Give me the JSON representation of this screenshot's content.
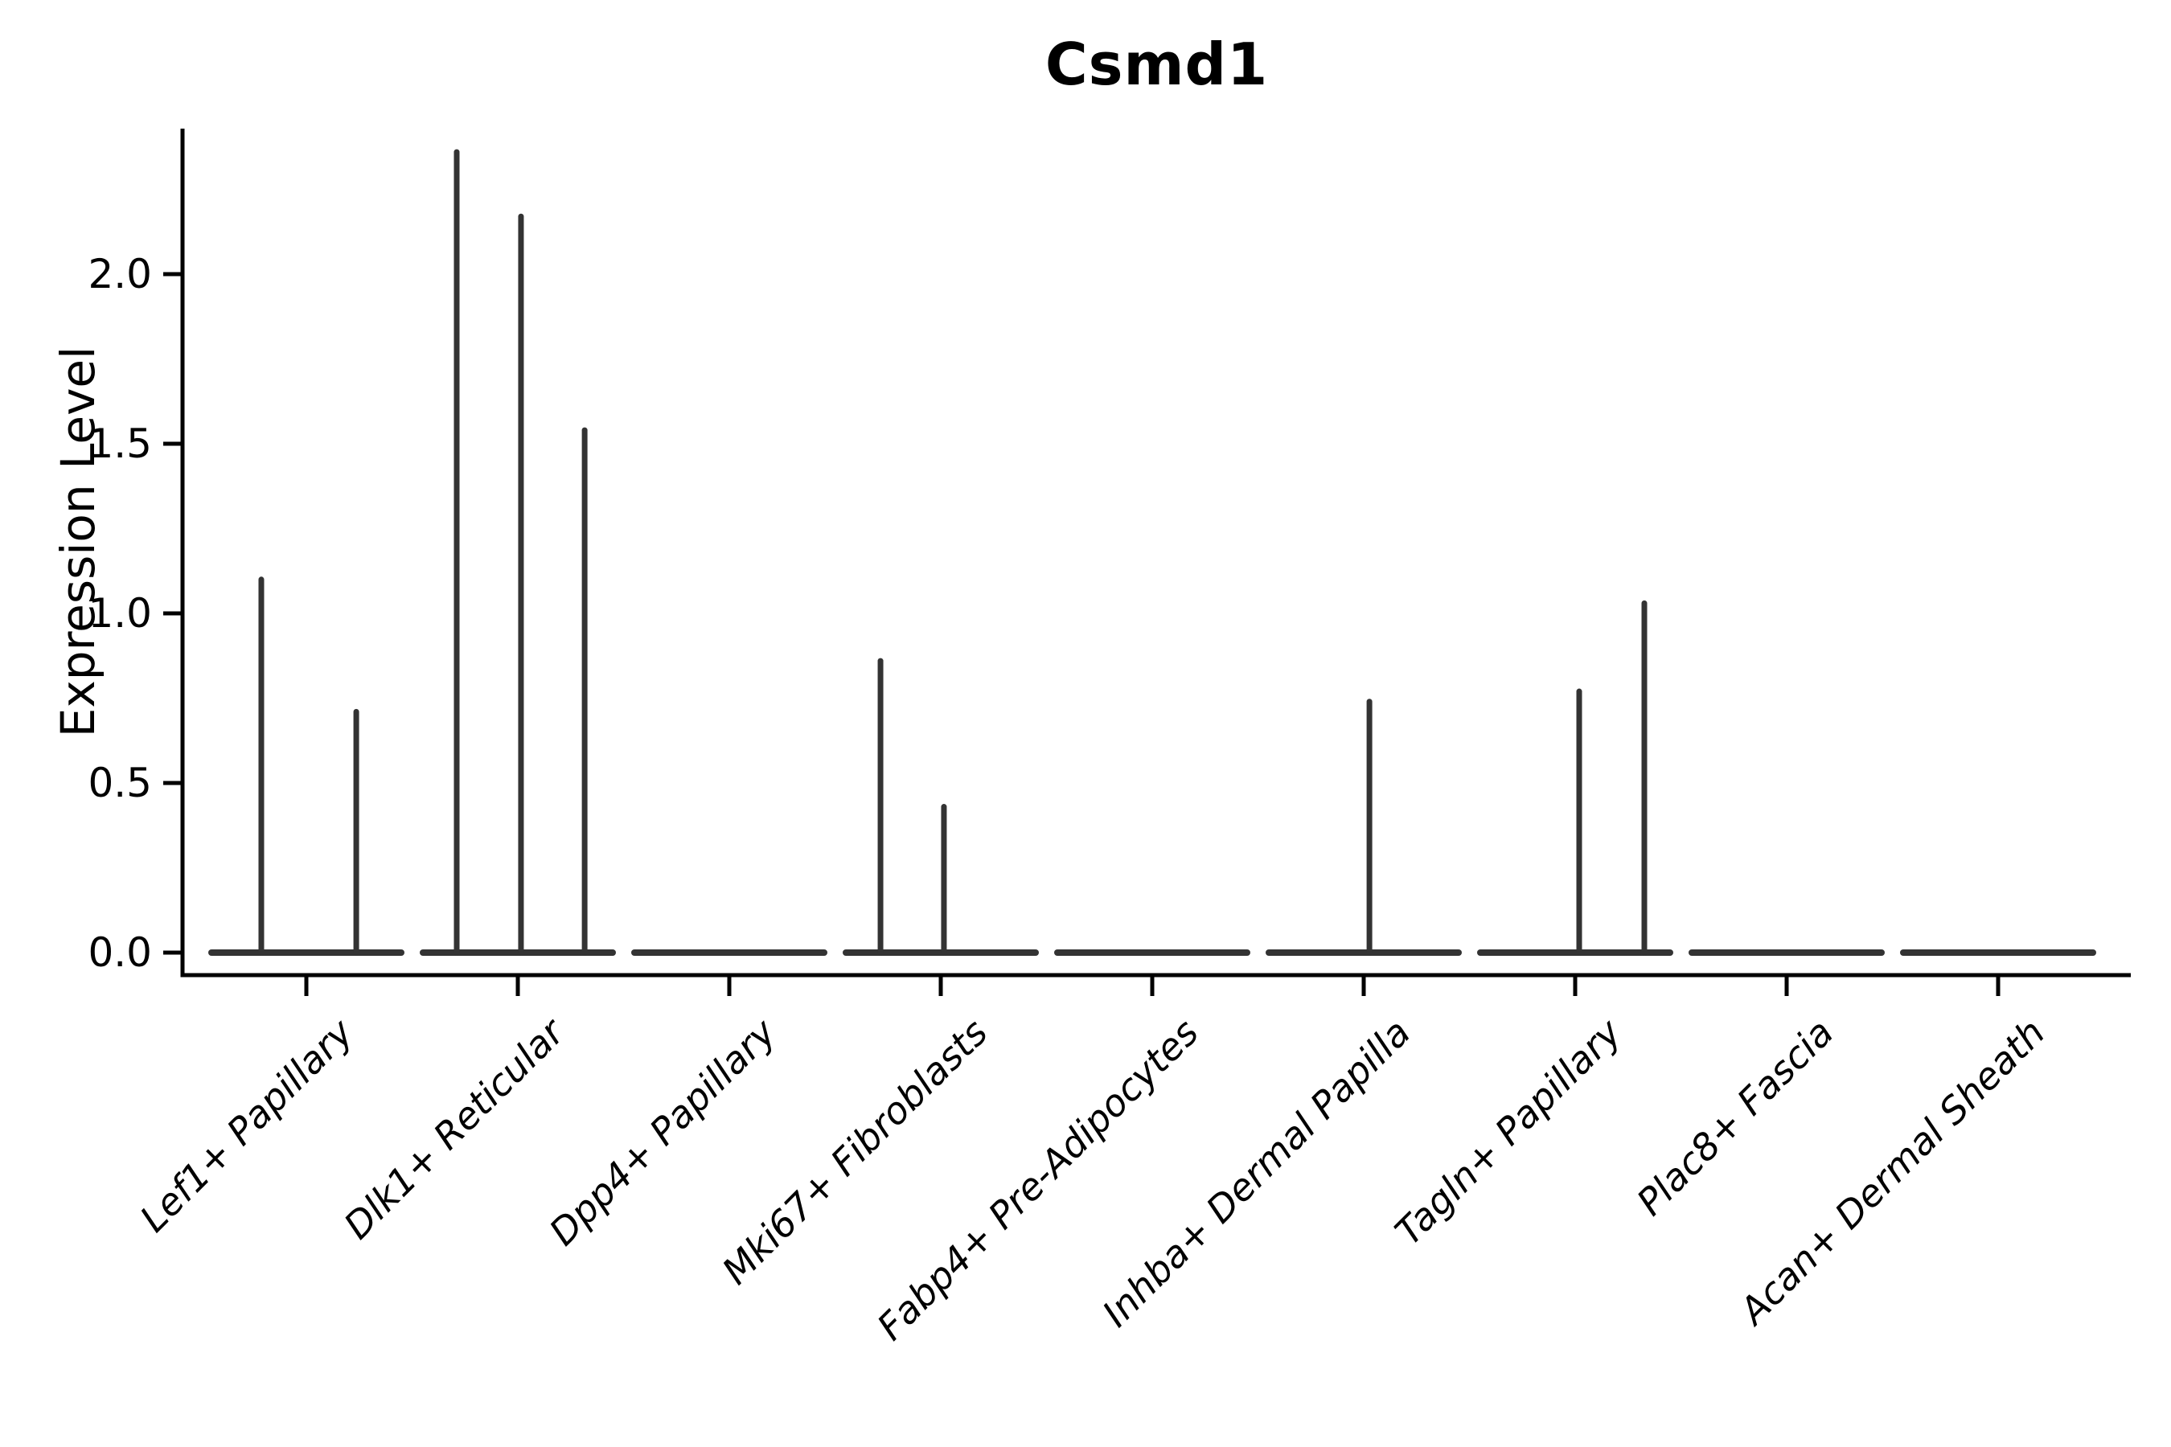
{
  "figure": {
    "background_color": "#ffffff",
    "axis_color": "#000000",
    "violin_color": "#333333"
  },
  "chart_data": {
    "type": "violin",
    "title": "Csmd1",
    "xlabel": "",
    "ylabel": "Expression Level",
    "categories": [
      "Lef1+ Papillary",
      "Dlk1+ Reticular",
      "Dpp4+ Papillary",
      "Mki67+ Fibroblasts",
      "Fabp4+ Pre-Adipocytes",
      "Inhba+ Dermal Papilla",
      "Tagln+ Papillary",
      "Plac8+ Fascia",
      "Acan+ Dermal Sheath"
    ],
    "ytick_labels": [
      "0.0",
      "0.5",
      "1.0",
      "1.5",
      "2.0"
    ],
    "yticks": [
      0.0,
      0.5,
      1.0,
      1.5,
      2.0
    ],
    "ylim": [
      -0.07,
      2.43
    ],
    "grid": false,
    "legend": "none",
    "description": "Each category shows a violin collapsed to a flat line at expression 0 with thin vertical spikes reaching the maximum expression of rare expressing cells.",
    "violins": [
      {
        "category": "Lef1+ Papillary",
        "baseline_value": 0.0,
        "spikes": [
          {
            "offset": -0.213,
            "value": 1.1
          },
          {
            "offset": 0.236,
            "value": 0.71
          }
        ]
      },
      {
        "category": "Dlk1+ Reticular",
        "baseline_value": 0.0,
        "spikes": [
          {
            "offset": -0.289,
            "value": 2.36
          },
          {
            "offset": 0.015,
            "value": 2.17
          },
          {
            "offset": 0.316,
            "value": 1.54
          }
        ]
      },
      {
        "category": "Dpp4+ Papillary",
        "baseline_value": 0.0,
        "spikes": []
      },
      {
        "category": "Mki67+ Fibroblasts",
        "baseline_value": 0.0,
        "spikes": [
          {
            "offset": -0.285,
            "value": 0.86
          },
          {
            "offset": 0.015,
            "value": 0.43
          }
        ]
      },
      {
        "category": "Fabp4+ Pre-Adipocytes",
        "baseline_value": 0.0,
        "spikes": []
      },
      {
        "category": "Inhba+ Dermal Papilla",
        "baseline_value": 0.0,
        "spikes": [
          {
            "offset": 0.027,
            "value": 0.74
          }
        ]
      },
      {
        "category": "Tagln+ Papillary",
        "baseline_value": 0.0,
        "spikes": [
          {
            "offset": 0.019,
            "value": 0.77
          },
          {
            "offset": 0.327,
            "value": 1.03
          }
        ]
      },
      {
        "category": "Plac8+ Fascia",
        "baseline_value": 0.0,
        "spikes": []
      },
      {
        "category": "Acan+ Dermal Sheath",
        "baseline_value": 0.0,
        "spikes": []
      }
    ]
  }
}
